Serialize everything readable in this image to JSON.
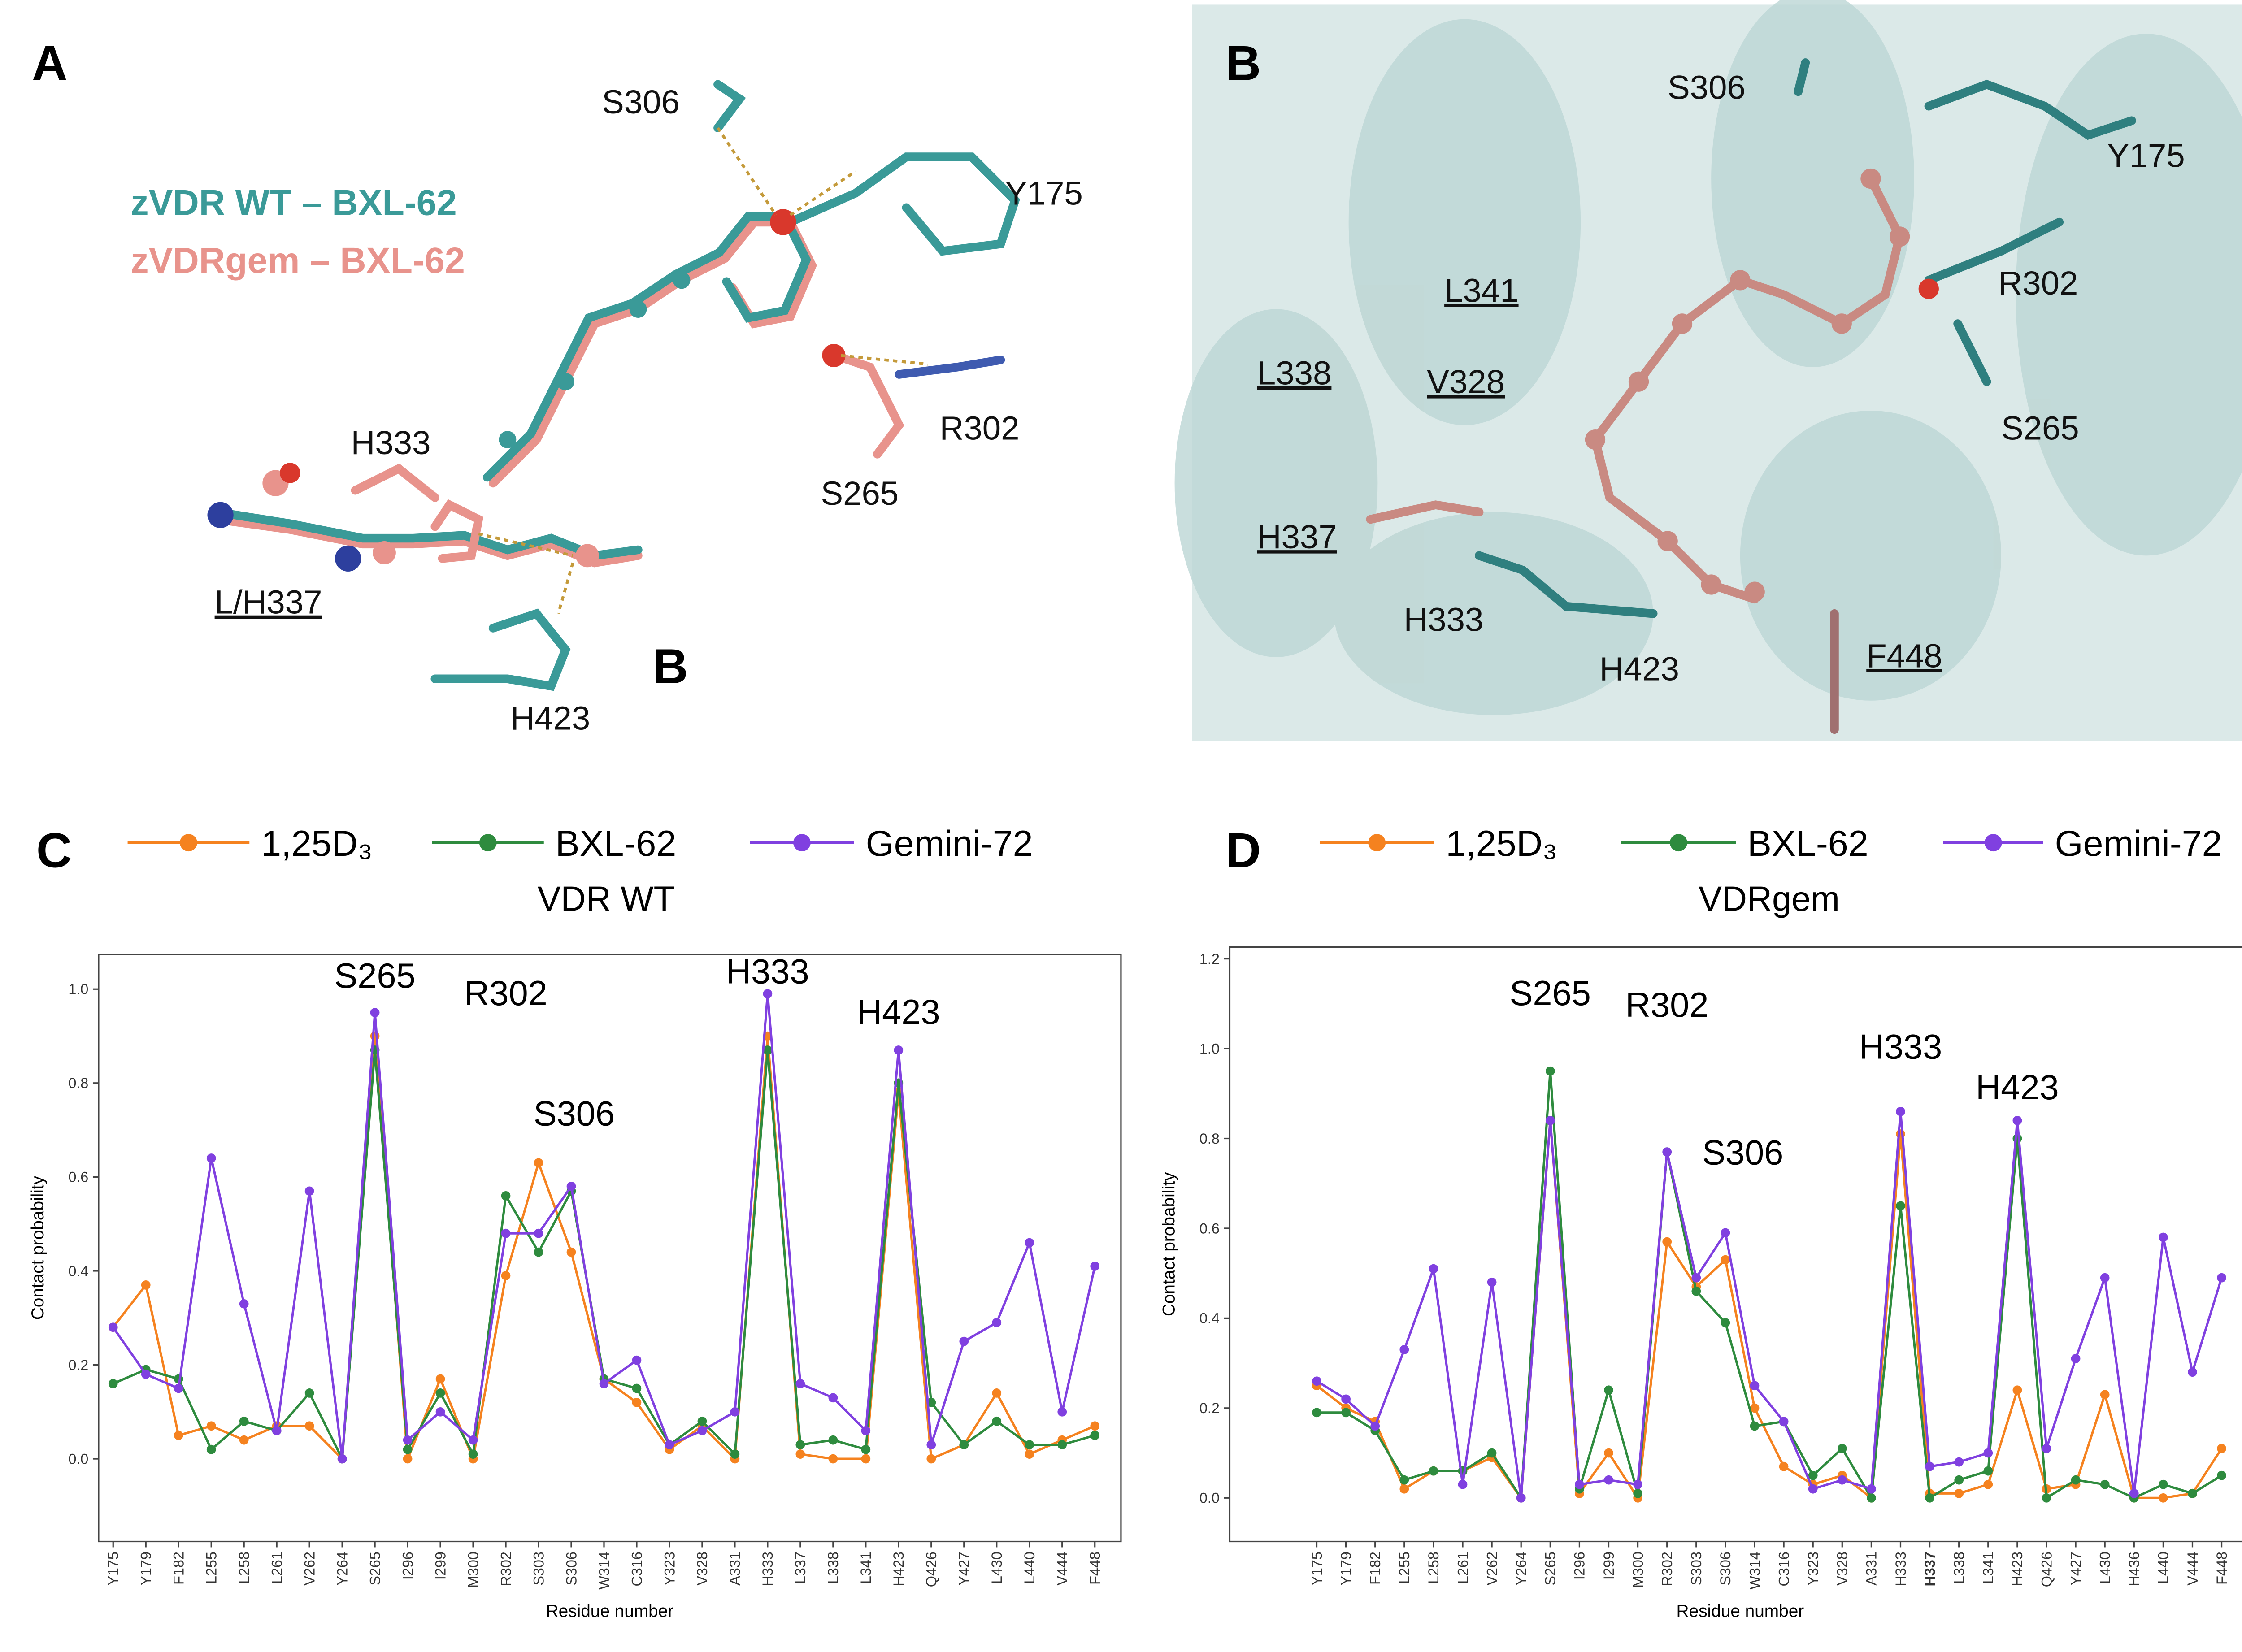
{
  "panel_a": {
    "letter": "A",
    "legend": [
      {
        "text": "zVDR WT – BXL-62",
        "color": "#3a9a98"
      },
      {
        "text": "zVDRgem – BXL-62",
        "color": "#e8938c"
      }
    ],
    "labels": [
      "S306",
      "Y175",
      "R302",
      "S265",
      "H333",
      "L/H337",
      "H423"
    ],
    "stray_letter": "B"
  },
  "panel_b": {
    "letter": "B",
    "labels": [
      "S306",
      "Y175",
      "R302",
      "L341",
      "L338",
      "V328",
      "S265",
      "H337",
      "H333",
      "H423",
      "F448"
    ]
  },
  "chart_data": [
    {
      "type": "line",
      "panel": "C",
      "subtitle": "VDR WT",
      "y_label": "Contact probability",
      "x_label": "Residue number",
      "categories": [
        "Y175",
        "Y179",
        "F182",
        "L255",
        "L258",
        "L261",
        "V262",
        "Y264",
        "S265",
        "I296",
        "I299",
        "M300",
        "R302",
        "S303",
        "S306",
        "W314",
        "C316",
        "Y323",
        "V328",
        "A331",
        "H333",
        "L337",
        "L338",
        "L341",
        "H423",
        "Q426",
        "Y427",
        "L430",
        "L440",
        "V444",
        "F448"
      ],
      "series": [
        {
          "name": "1,25D₃",
          "color": "#f5821f",
          "values": [
            0.28,
            0.37,
            0.05,
            0.07,
            0.04,
            0.07,
            0.07,
            0.0,
            0.9,
            0.0,
            0.17,
            0.0,
            0.39,
            0.63,
            0.44,
            0.17,
            0.12,
            0.02,
            0.07,
            0.0,
            0.9,
            0.01,
            0.0,
            0.0,
            0.78,
            0.0,
            0.03,
            0.14,
            0.01,
            0.04,
            0.07
          ]
        },
        {
          "name": "BXL-62",
          "color": "#2e8b3e",
          "values": [
            0.16,
            0.19,
            0.17,
            0.02,
            0.08,
            0.06,
            0.14,
            0.0,
            0.87,
            0.02,
            0.14,
            0.01,
            0.56,
            0.44,
            0.57,
            0.17,
            0.15,
            0.03,
            0.08,
            0.01,
            0.87,
            0.03,
            0.04,
            0.02,
            0.8,
            0.12,
            0.03,
            0.08,
            0.03,
            0.03,
            0.05
          ]
        },
        {
          "name": "Gemini-72",
          "color": "#8040e0",
          "values": [
            0.28,
            0.18,
            0.15,
            0.64,
            0.33,
            0.06,
            0.57,
            0.0,
            0.95,
            0.04,
            0.1,
            0.04,
            0.48,
            0.48,
            0.58,
            0.16,
            0.21,
            0.03,
            0.06,
            0.1,
            0.99,
            0.16,
            0.13,
            0.06,
            0.87,
            0.03,
            0.25,
            0.29,
            0.46,
            0.1,
            0.41
          ]
        }
      ],
      "annotations": [
        "S265",
        "R302",
        "S306",
        "H333",
        "H423"
      ],
      "ylim": [
        -0.176,
        1.074
      ],
      "yticks": [
        {
          "value": 0,
          "label": "0.0"
        },
        0.2,
        0.4,
        0.6,
        0.8,
        {
          "value": 1,
          "label": "1.0"
        }
      ],
      "grid": false
    },
    {
      "type": "line",
      "panel": "D",
      "subtitle": "VDRgem",
      "y_label": "Contact probability",
      "x_label": "Residue number",
      "categories": [
        "Y175",
        "Y179",
        "F182",
        "L255",
        "L258",
        "L261",
        "V262",
        "Y264",
        "S265",
        "I296",
        "I299",
        "M300",
        "R302",
        "S303",
        "S306",
        "W314",
        "C316",
        "Y323",
        "V328",
        "A331",
        "H333",
        "H337",
        "L338",
        "L341",
        "H423",
        "Q426",
        "Y427",
        "L430",
        "H436",
        "L440",
        "V444",
        "F448"
      ],
      "highlight": {
        "index": 21,
        "color": "#d62728"
      },
      "series": [
        {
          "name": "1,25D₃",
          "color": "#f5821f",
          "values": [
            0.25,
            0.2,
            0.17,
            0.02,
            0.06,
            0.06,
            0.09,
            0.0,
            0.84,
            0.01,
            0.1,
            0.0,
            0.57,
            0.47,
            0.53,
            0.2,
            0.07,
            0.03,
            0.05,
            0.0,
            0.81,
            0.01,
            0.01,
            0.03,
            0.24,
            0.02,
            0.03,
            0.23,
            0.0,
            0.0,
            0.01,
            0.11
          ]
        },
        {
          "name": "BXL-62",
          "color": "#2e8b3e",
          "values": [
            0.19,
            0.19,
            0.15,
            0.04,
            0.06,
            0.06,
            0.1,
            0.0,
            0.95,
            0.02,
            0.24,
            0.01,
            0.77,
            0.46,
            0.39,
            0.16,
            0.17,
            0.05,
            0.11,
            0.0,
            0.65,
            0.0,
            0.04,
            0.06,
            0.8,
            0.0,
            0.04,
            0.03,
            0.0,
            0.03,
            0.01,
            0.05
          ]
        },
        {
          "name": "Gemini-72",
          "color": "#8040e0",
          "values": [
            0.26,
            0.22,
            0.16,
            0.33,
            0.51,
            0.03,
            0.48,
            0.0,
            0.84,
            0.03,
            0.04,
            0.03,
            0.77,
            0.49,
            0.59,
            0.25,
            0.17,
            0.02,
            0.04,
            0.02,
            0.86,
            0.07,
            0.08,
            0.1,
            0.84,
            0.11,
            0.31,
            0.49,
            0.01,
            0.58,
            0.28,
            0.49
          ]
        }
      ],
      "annotations": [
        "S265",
        "R302",
        "S306",
        "H333",
        "H423"
      ],
      "ylim": [
        -0.097,
        1.226
      ],
      "yticks": [
        {
          "value": 0,
          "label": "0.0"
        },
        0.2,
        0.4,
        0.6,
        0.8,
        {
          "value": 1,
          "label": "1.0"
        },
        1.2
      ],
      "grid": false
    }
  ]
}
